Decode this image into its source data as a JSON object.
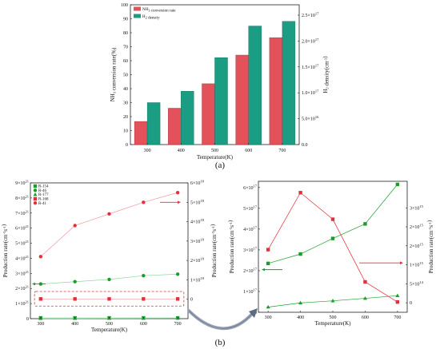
{
  "chart_data": [
    {
      "panel_label": "(a)",
      "type": "bar",
      "categories": [
        "300",
        "400",
        "500",
        "600",
        "700"
      ],
      "xlabel": "Temperature(K)",
      "ylabel_left": "NH3 conversion rate(%)",
      "ylabel_right": "H2 density(cm-3)",
      "ylim_left": [
        0,
        100
      ],
      "ylim_right": [
        0,
        2.7e+17
      ],
      "yticks_left": [
        "0",
        "10",
        "20",
        "30",
        "40",
        "50",
        "60",
        "70",
        "80",
        "90",
        "100"
      ],
      "yticks_right": [
        "0.0",
        "5.0×10^16",
        "1.0×10^17",
        "1.5×10^17",
        "2.0×10^17",
        "2.5×10^17"
      ],
      "legend_position": "top-left",
      "series": [
        {
          "name": "NH3 conversion rate",
          "axis": "left",
          "color": "#e3525b",
          "values": [
            16.5,
            26,
            43.5,
            64,
            76.5
          ]
        },
        {
          "name": "H2 density",
          "axis": "right",
          "color": "#1a9d83",
          "values": [
            8.1e+16,
            1.03e+17,
            1.68e+17,
            2.29e+17,
            2.38e+17
          ]
        }
      ]
    },
    {
      "panel_label": "(b)",
      "type": "line",
      "x": [
        300,
        400,
        500,
        600,
        700
      ],
      "xlabel": "Temperature(K)",
      "ylabel_left": "Production rate(cm-3s-1)",
      "ylabel_right": "Production rate(cm-3s-1)",
      "xlim": [
        270,
        730
      ],
      "ylim_left": [
        0,
        9e+21
      ],
      "ylim_right": [
        -1e+18,
        6e+18
      ],
      "xticks": [
        "300",
        "400",
        "500",
        "600",
        "700"
      ],
      "yticks_left": [
        "0",
        "1×10^21",
        "2×10^21",
        "3×10^21",
        "4×10^21",
        "5×10^21",
        "6×10^21",
        "7×10^21",
        "8×10^21",
        "9×10^21"
      ],
      "yticks_right": [
        "0",
        "1×10^18",
        "2×10^18",
        "3×10^18",
        "4×10^18",
        "5×10^18",
        "6×10^18"
      ],
      "legend_position": "top-left",
      "series": [
        {
          "name": "R-154",
          "axis": "left",
          "color": "#1a9d2a",
          "marker": "square",
          "values": [
            5e+19,
            5e+19,
            5e+19,
            5e+19,
            5e+19
          ]
        },
        {
          "name": "R-46",
          "axis": "left",
          "color": "#1a9d2a",
          "marker": "circle",
          "values": [
            2.3e+21,
            2.45e+21,
            2.6e+21,
            2.85e+21,
            2.95e+21
          ]
        },
        {
          "name": "R-177",
          "axis": "left",
          "color": "#1a9d2a",
          "marker": "triangle",
          "values": [
            1e+19,
            1.5e+19,
            2e+19,
            2.5e+19,
            3e+19
          ]
        },
        {
          "name": "R-168",
          "axis": "right",
          "color": "#e3303b",
          "marker": "square",
          "values": [
            1.7e+16,
            1.7e+16,
            1.7e+16,
            1.7e+16,
            1.7e+16
          ]
        },
        {
          "name": "R-41",
          "axis": "right",
          "color": "#e3303b",
          "marker": "circle",
          "values": [
            2.2e+18,
            3.8e+18,
            4.4e+18,
            5e+18,
            5.5e+18
          ]
        }
      ]
    },
    {
      "panel_label": "(b) inset",
      "type": "line",
      "x": [
        300,
        400,
        500,
        600,
        700
      ],
      "xlabel": "Temperature(K)",
      "ylabel_left": "Production rate(cm-3s-1)",
      "ylabel_right": "Production rate(cm-3s-1)",
      "xlim": [
        270,
        730
      ],
      "ylim_left": [
        0,
        6.3e+17
      ],
      "ylim_right": [
        -250000000000000.0,
        3200000000000000.0
      ],
      "xticks": [
        "300",
        "400",
        "500",
        "600",
        "700"
      ],
      "yticks_left": [
        "0",
        "1×10^17",
        "2×10^17",
        "3×10^17",
        "4×10^17",
        "5×10^17",
        "6×10^17"
      ],
      "yticks_right": [
        "0",
        "5×10^14",
        "1×10^15",
        "2×10^15",
        "2×10^15",
        "3×10^15"
      ],
      "series": [
        {
          "name": "R-154",
          "axis": "left",
          "color": "#1a9d2a",
          "marker": "square",
          "values": [
            2.35e+17,
            2.8e+17,
            3.55e+17,
            4.25e+17,
            6.15e+17
          ]
        },
        {
          "name": "R-177",
          "axis": "left",
          "color": "#1a9d2a",
          "marker": "triangle",
          "values": [
            2.5e+16,
            4.5e+16,
            5.5e+16,
            6.7e+16,
            8e+16
          ]
        },
        {
          "name": "R-168",
          "axis": "right",
          "color": "#e3303b",
          "marker": "square",
          "values": [
            1400000000000000.0,
            2900000000000000.0,
            2200000000000000.0,
            550000000000000.0,
            20000000000000.0
          ]
        }
      ]
    }
  ]
}
